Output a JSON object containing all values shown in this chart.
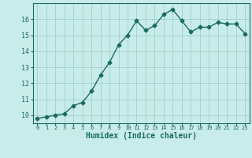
{
  "x": [
    0,
    1,
    2,
    3,
    4,
    5,
    6,
    7,
    8,
    9,
    10,
    11,
    12,
    13,
    14,
    15,
    16,
    17,
    18,
    19,
    20,
    21,
    22,
    23
  ],
  "y": [
    9.8,
    9.9,
    10.0,
    10.1,
    10.6,
    10.8,
    11.5,
    12.5,
    13.3,
    14.4,
    15.0,
    15.9,
    15.3,
    15.6,
    16.3,
    16.6,
    15.9,
    15.2,
    15.5,
    15.5,
    15.8,
    15.7,
    15.7,
    15.1
  ],
  "xlabel": "Humidex (Indice chaleur)",
  "xlim": [
    -0.5,
    23.5
  ],
  "ylim": [
    9.5,
    17.0
  ],
  "yticks": [
    10,
    11,
    12,
    13,
    14,
    15,
    16
  ],
  "xticks": [
    0,
    1,
    2,
    3,
    4,
    5,
    6,
    7,
    8,
    9,
    10,
    11,
    12,
    13,
    14,
    15,
    16,
    17,
    18,
    19,
    20,
    21,
    22,
    23
  ],
  "bg_color": "#c8ece9",
  "line_color": "#1a6b5e",
  "grid_color": "#a0d0cc",
  "marker": "D",
  "marker_size": 2.5,
  "line_width": 1.0
}
